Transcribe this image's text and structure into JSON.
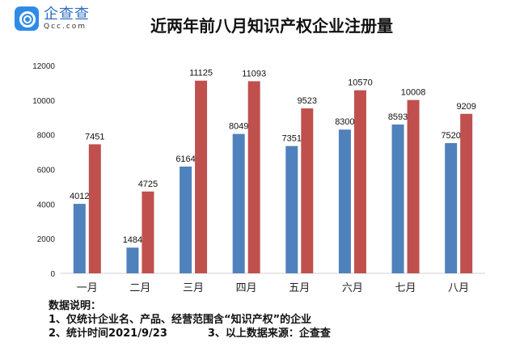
{
  "logo": {
    "cn": "企查查",
    "en": "Qcc.com",
    "color": "#2f8ce6"
  },
  "chart_data": {
    "type": "bar",
    "title": "近两年前八月知识产权企业注册量",
    "categories": [
      "一月",
      "二月",
      "三月",
      "四月",
      "五月",
      "六月",
      "七月",
      "八月"
    ],
    "series": [
      {
        "values": [
          4012,
          1484,
          6164,
          8049,
          7351,
          8300,
          8593,
          7520
        ],
        "color": "#4f81bd"
      },
      {
        "values": [
          7451,
          4725,
          11125,
          11093,
          9523,
          10570,
          10008,
          9209
        ],
        "color": "#c0504d"
      }
    ],
    "yticks": [
      0,
      2000,
      4000,
      6000,
      8000,
      10000,
      12000
    ],
    "ylim": [
      0,
      12000
    ],
    "grid": false,
    "legend": "none",
    "xlabel": "",
    "ylabel": ""
  },
  "notes": {
    "heading": "数据说明：",
    "line1": "1、仅统计企业名、产品、经营范围含“知识产权”的企业",
    "line2a": "2、统计时间2021/9/23",
    "line2b": "3、以上数据来源：企查查"
  }
}
